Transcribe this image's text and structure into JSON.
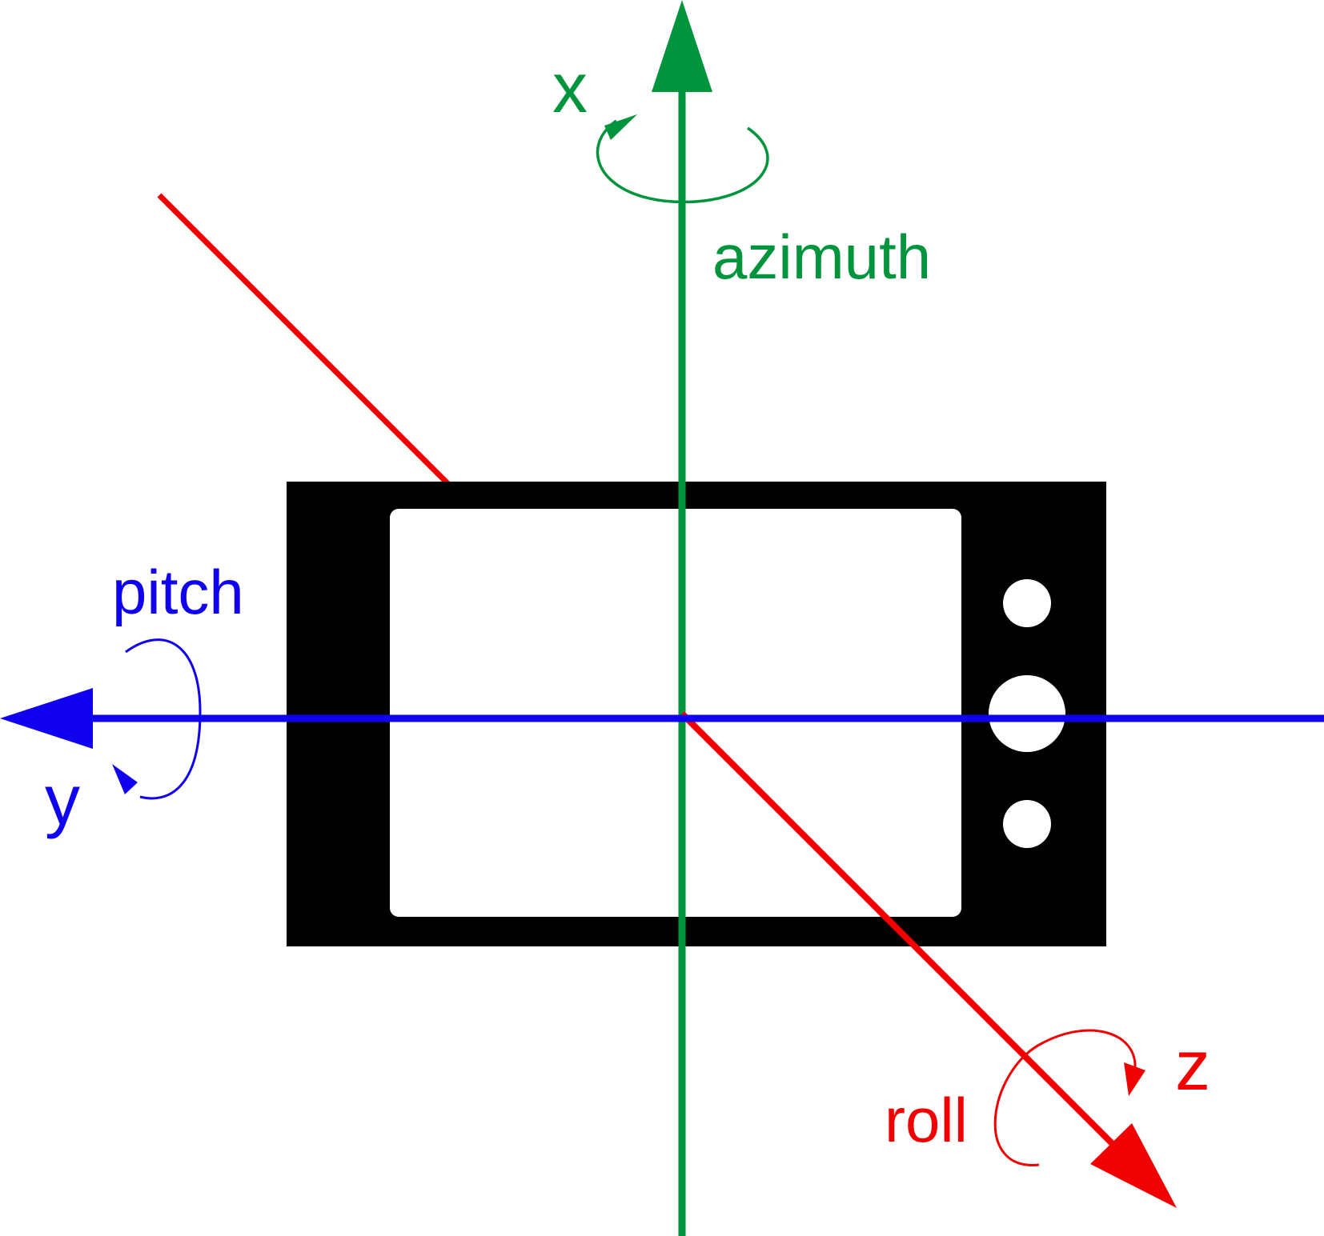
{
  "colors": {
    "x_axis": "#00953c",
    "y_axis": "#1000f0",
    "z_axis": "#f00000",
    "device_body": "#000000",
    "device_screen": "#ffffff",
    "background": "#ffffff"
  },
  "axes": {
    "x": {
      "label": "x",
      "rotation_label": "azimuth"
    },
    "y": {
      "label": "y",
      "rotation_label": "pitch"
    },
    "z": {
      "label": "z",
      "rotation_label": "roll"
    }
  },
  "device": {
    "name": "phone-landscape",
    "buttons": 3
  }
}
